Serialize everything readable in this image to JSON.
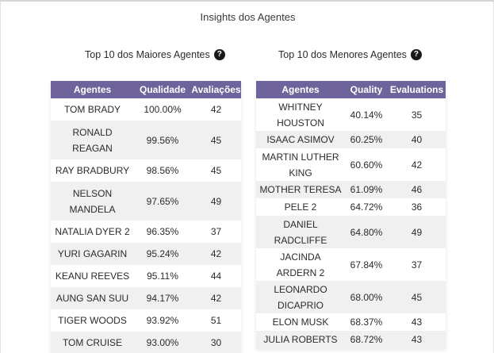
{
  "title": "Insights dos Agentes",
  "help_icon": "question-icon",
  "colors": {
    "header_bg": "#6e639a",
    "header_text": "#ffffff",
    "row_alt": "#f0f0f0"
  },
  "top": {
    "title": "Top 10 dos Maiores Agentes",
    "headers": [
      "Agentes",
      "Qualidade",
      "Avaliações"
    ],
    "rows": [
      [
        "TOM BRADY",
        "100.00%",
        "42"
      ],
      [
        "RONALD REAGAN",
        "99.56%",
        "45"
      ],
      [
        "RAY BRADBURY",
        "98.56%",
        "45"
      ],
      [
        "NELSON MANDELA",
        "97.65%",
        "49"
      ],
      [
        "NATALIA DYER 2",
        "96.35%",
        "37"
      ],
      [
        "YURI GAGARIN",
        "95.24%",
        "42"
      ],
      [
        "KEANU REEVES",
        "95.11%",
        "44"
      ],
      [
        "AUNG SAN SUU",
        "94.17%",
        "42"
      ],
      [
        "TIGER WOODS",
        "93.92%",
        "51"
      ],
      [
        "TOM CRUISE",
        "93.00%",
        "30"
      ]
    ]
  },
  "bottom": {
    "title": "Top 10 dos Menores Agentes",
    "headers": [
      "Agentes",
      "Quality",
      "Evaluations"
    ],
    "rows": [
      [
        "WHITNEY HOUSTON",
        "40.14%",
        "35"
      ],
      [
        "ISAAC ASIMOV",
        "60.25%",
        "40"
      ],
      [
        "MARTIN LUTHER KING",
        "60.60%",
        "42"
      ],
      [
        "MOTHER TERESA",
        "61.09%",
        "46"
      ],
      [
        "PELE 2",
        "64.72%",
        "36"
      ],
      [
        "DANIEL RADCLIFFE",
        "64.80%",
        "49"
      ],
      [
        "JACINDA ARDERN 2",
        "67.84%",
        "37"
      ],
      [
        "LEONARDO DICAPRIO",
        "68.00%",
        "45"
      ],
      [
        "ELON MUSK",
        "68.37%",
        "43"
      ],
      [
        "JULIA ROBERTS",
        "68.72%",
        "43"
      ]
    ]
  }
}
